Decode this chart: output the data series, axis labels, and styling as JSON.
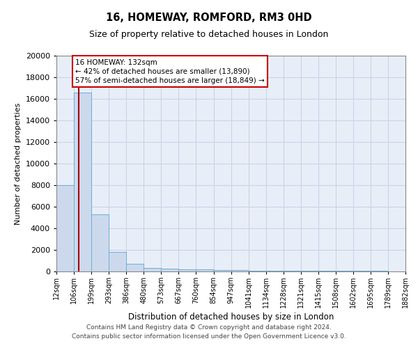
{
  "title": "16, HOMEWAY, ROMFORD, RM3 0HD",
  "subtitle": "Size of property relative to detached houses in London",
  "xlabel": "Distribution of detached houses by size in London",
  "ylabel": "Number of detached properties",
  "bar_color": "#ccd9ed",
  "bar_edge_color": "#6baed6",
  "bar_left_edges": [
    12,
    106,
    199,
    293,
    386,
    480,
    573,
    667,
    760,
    854,
    947,
    1041,
    1134,
    1228,
    1321,
    1415,
    1508,
    1602,
    1695,
    1789
  ],
  "bar_heights": [
    8000,
    16600,
    5300,
    1800,
    700,
    350,
    250,
    200,
    200,
    150,
    100,
    80,
    70,
    60,
    55,
    50,
    45,
    40,
    35,
    30
  ],
  "bin_width": 93,
  "xtick_labels": [
    "12sqm",
    "106sqm",
    "199sqm",
    "293sqm",
    "386sqm",
    "480sqm",
    "573sqm",
    "667sqm",
    "760sqm",
    "854sqm",
    "947sqm",
    "1041sqm",
    "1134sqm",
    "1228sqm",
    "1321sqm",
    "1415sqm",
    "1508sqm",
    "1602sqm",
    "1695sqm",
    "1789sqm",
    "1882sqm"
  ],
  "xtick_positions": [
    12,
    106,
    199,
    293,
    386,
    480,
    573,
    667,
    760,
    854,
    947,
    1041,
    1134,
    1228,
    1321,
    1415,
    1508,
    1602,
    1695,
    1789,
    1882
  ],
  "ylim": [
    0,
    20000
  ],
  "yticks": [
    0,
    2000,
    4000,
    6000,
    8000,
    10000,
    12000,
    14000,
    16000,
    18000,
    20000
  ],
  "vline_x": 132,
  "vline_color": "#aa0000",
  "annotation_text": "16 HOMEWAY: 132sqm\n← 42% of detached houses are smaller (13,890)\n57% of semi-detached houses are larger (18,849) →",
  "annotation_box_facecolor": "#ffffff",
  "annotation_box_edgecolor": "#cc0000",
  "footer_line1": "Contains HM Land Registry data © Crown copyright and database right 2024.",
  "footer_line2": "Contains public sector information licensed under the Open Government Licence v3.0.",
  "grid_color": "#c8d4e8",
  "background_color": "#e8eef8"
}
